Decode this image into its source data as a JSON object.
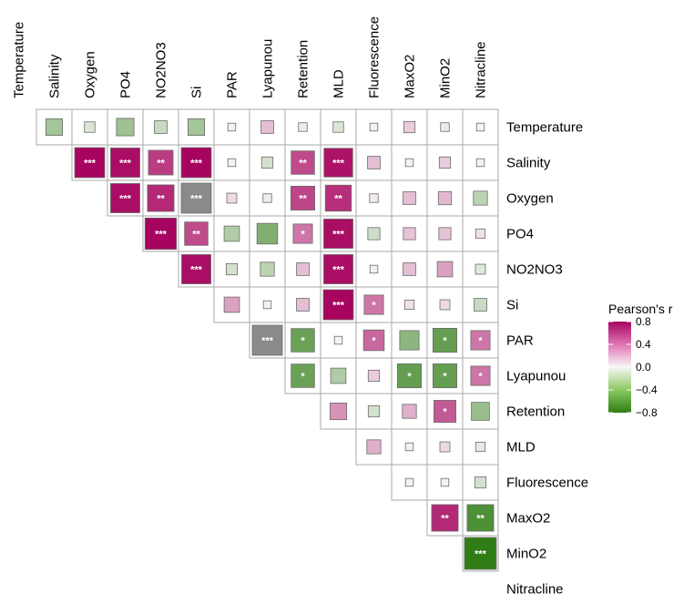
{
  "chart_data": {
    "type": "heatmap",
    "subtype": "correlation-upper-triangle",
    "variables": [
      "Temperature",
      "Salinity",
      "Oxygen",
      "PO4",
      "NO2NO3",
      "Si",
      "PAR",
      "Lyapunou",
      "Retention",
      "MLD",
      "Fluorescence",
      "MaxO2",
      "MinO2",
      "Nitracline"
    ],
    "legend": {
      "title": "Pearson's r",
      "ticks": [
        "0.8",
        "0.4",
        "0.0",
        "−0.4",
        "−0.8"
      ],
      "tick_values": [
        0.8,
        0.4,
        0.0,
        -0.4,
        -0.8
      ],
      "range": [
        -0.8,
        0.8
      ],
      "placement": "right"
    },
    "colors": {
      "positive": "#a7045f",
      "negative": "#2f7d14",
      "neutral": "#f7f7f7",
      "nonsignificant_flag": "#8a8a8a",
      "grid": "#aaaaaa",
      "star_text": "#ffffff"
    },
    "cells": [
      {
        "row": "Temperature",
        "col": "Salinity",
        "r": -0.35,
        "sig": ""
      },
      {
        "row": "Temperature",
        "col": "Oxygen",
        "r": -0.12,
        "sig": ""
      },
      {
        "row": "Temperature",
        "col": "PO4",
        "r": -0.38,
        "sig": ""
      },
      {
        "row": "Temperature",
        "col": "NO2NO3",
        "r": -0.2,
        "sig": ""
      },
      {
        "row": "Temperature",
        "col": "Si",
        "r": -0.35,
        "sig": ""
      },
      {
        "row": "Temperature",
        "col": "PAR",
        "r": 0.02,
        "sig": ""
      },
      {
        "row": "Temperature",
        "col": "Lyapunou",
        "r": 0.2,
        "sig": ""
      },
      {
        "row": "Temperature",
        "col": "Retention",
        "r": 0.05,
        "sig": ""
      },
      {
        "row": "Temperature",
        "col": "MLD",
        "r": -0.12,
        "sig": ""
      },
      {
        "row": "Temperature",
        "col": "Fluorescence",
        "r": 0.02,
        "sig": ""
      },
      {
        "row": "Temperature",
        "col": "MaxO2",
        "r": 0.15,
        "sig": ""
      },
      {
        "row": "Temperature",
        "col": "MinO2",
        "r": 0.05,
        "sig": ""
      },
      {
        "row": "Temperature",
        "col": "Nitracline",
        "r": 0.02,
        "sig": ""
      },
      {
        "row": "Salinity",
        "col": "Oxygen",
        "r": 0.85,
        "sig": "***"
      },
      {
        "row": "Salinity",
        "col": "PO4",
        "r": 0.82,
        "sig": "***"
      },
      {
        "row": "Salinity",
        "col": "NO2NO3",
        "r": 0.65,
        "sig": "**"
      },
      {
        "row": "Salinity",
        "col": "Si",
        "r": 0.85,
        "sig": "***"
      },
      {
        "row": "Salinity",
        "col": "PAR",
        "r": 0.02,
        "sig": ""
      },
      {
        "row": "Salinity",
        "col": "Lyapunou",
        "r": -0.15,
        "sig": ""
      },
      {
        "row": "Salinity",
        "col": "Retention",
        "r": 0.6,
        "sig": "**"
      },
      {
        "row": "Salinity",
        "col": "MLD",
        "r": 0.8,
        "sig": "***"
      },
      {
        "row": "Salinity",
        "col": "Fluorescence",
        "r": 0.2,
        "sig": ""
      },
      {
        "row": "Salinity",
        "col": "MaxO2",
        "r": 0.02,
        "sig": ""
      },
      {
        "row": "Salinity",
        "col": "MinO2",
        "r": 0.15,
        "sig": ""
      },
      {
        "row": "Salinity",
        "col": "Nitracline",
        "r": 0.02,
        "sig": ""
      },
      {
        "row": "Oxygen",
        "col": "PO4",
        "r": 0.82,
        "sig": "***"
      },
      {
        "row": "Oxygen",
        "col": "NO2NO3",
        "r": 0.72,
        "sig": "**"
      },
      {
        "row": "Oxygen",
        "col": "Si",
        "r": 0.85,
        "sig": "***",
        "flag": true
      },
      {
        "row": "Oxygen",
        "col": "PAR",
        "r": 0.1,
        "sig": ""
      },
      {
        "row": "Oxygen",
        "col": "Lyapunou",
        "r": -0.05,
        "sig": ""
      },
      {
        "row": "Oxygen",
        "col": "Retention",
        "r": 0.62,
        "sig": "**"
      },
      {
        "row": "Oxygen",
        "col": "MLD",
        "r": 0.7,
        "sig": "**"
      },
      {
        "row": "Oxygen",
        "col": "Fluorescence",
        "r": 0.05,
        "sig": ""
      },
      {
        "row": "Oxygen",
        "col": "MaxO2",
        "r": 0.2,
        "sig": ""
      },
      {
        "row": "Oxygen",
        "col": "MinO2",
        "r": 0.22,
        "sig": ""
      },
      {
        "row": "Oxygen",
        "col": "Nitracline",
        "r": -0.25,
        "sig": ""
      },
      {
        "row": "PO4",
        "col": "NO2NO3",
        "r": 0.9,
        "sig": "***"
      },
      {
        "row": "PO4",
        "col": "Si",
        "r": 0.6,
        "sig": "**"
      },
      {
        "row": "PO4",
        "col": "PAR",
        "r": -0.3,
        "sig": ""
      },
      {
        "row": "PO4",
        "col": "Lyapunou",
        "r": -0.5,
        "sig": ""
      },
      {
        "row": "PO4",
        "col": "Retention",
        "r": 0.45,
        "sig": "*"
      },
      {
        "row": "PO4",
        "col": "MLD",
        "r": 0.82,
        "sig": "***"
      },
      {
        "row": "PO4",
        "col": "Fluorescence",
        "r": -0.18,
        "sig": ""
      },
      {
        "row": "PO4",
        "col": "MaxO2",
        "r": 0.18,
        "sig": ""
      },
      {
        "row": "PO4",
        "col": "MinO2",
        "r": 0.18,
        "sig": ""
      },
      {
        "row": "PO4",
        "col": "Nitracline",
        "r": 0.08,
        "sig": ""
      },
      {
        "row": "NO2NO3",
        "col": "Si",
        "r": 0.82,
        "sig": "***"
      },
      {
        "row": "NO2NO3",
        "col": "PAR",
        "r": -0.15,
        "sig": ""
      },
      {
        "row": "NO2NO3",
        "col": "Lyapunou",
        "r": -0.25,
        "sig": ""
      },
      {
        "row": "NO2NO3",
        "col": "Retention",
        "r": 0.2,
        "sig": ""
      },
      {
        "row": "NO2NO3",
        "col": "MLD",
        "r": 0.82,
        "sig": "***"
      },
      {
        "row": "NO2NO3",
        "col": "Fluorescence",
        "r": 0.02,
        "sig": ""
      },
      {
        "row": "NO2NO3",
        "col": "MaxO2",
        "r": 0.2,
        "sig": ""
      },
      {
        "row": "NO2NO3",
        "col": "MinO2",
        "r": 0.3,
        "sig": ""
      },
      {
        "row": "NO2NO3",
        "col": "Nitracline",
        "r": -0.1,
        "sig": ""
      },
      {
        "row": "Si",
        "col": "PAR",
        "r": 0.3,
        "sig": ""
      },
      {
        "row": "Si",
        "col": "Lyapunou",
        "r": 0.02,
        "sig": ""
      },
      {
        "row": "Si",
        "col": "Retention",
        "r": 0.2,
        "sig": ""
      },
      {
        "row": "Si",
        "col": "MLD",
        "r": 0.85,
        "sig": "***"
      },
      {
        "row": "Si",
        "col": "Fluorescence",
        "r": 0.45,
        "sig": "*"
      },
      {
        "row": "Si",
        "col": "MaxO2",
        "r": 0.08,
        "sig": ""
      },
      {
        "row": "Si",
        "col": "MinO2",
        "r": 0.1,
        "sig": ""
      },
      {
        "row": "Si",
        "col": "Nitracline",
        "r": -0.2,
        "sig": ""
      },
      {
        "row": "PAR",
        "col": "Lyapunou",
        "r": 0.85,
        "sig": "***",
        "flag": true
      },
      {
        "row": "PAR",
        "col": "Retention",
        "r": -0.6,
        "sig": "*"
      },
      {
        "row": "PAR",
        "col": "MLD",
        "r": -0.02,
        "sig": ""
      },
      {
        "row": "PAR",
        "col": "Fluorescence",
        "r": 0.5,
        "sig": "*"
      },
      {
        "row": "PAR",
        "col": "MaxO2",
        "r": -0.45,
        "sig": ""
      },
      {
        "row": "PAR",
        "col": "MinO2",
        "r": -0.62,
        "sig": "*"
      },
      {
        "row": "PAR",
        "col": "Nitracline",
        "r": 0.45,
        "sig": "*"
      },
      {
        "row": "Lyapunou",
        "col": "Retention",
        "r": -0.6,
        "sig": "*"
      },
      {
        "row": "Lyapunou",
        "col": "MLD",
        "r": -0.3,
        "sig": ""
      },
      {
        "row": "Lyapunou",
        "col": "Fluorescence",
        "r": 0.15,
        "sig": ""
      },
      {
        "row": "Lyapunou",
        "col": "MaxO2",
        "r": -0.62,
        "sig": "*"
      },
      {
        "row": "Lyapunou",
        "col": "MinO2",
        "r": -0.62,
        "sig": "*"
      },
      {
        "row": "Lyapunou",
        "col": "Nitracline",
        "r": 0.45,
        "sig": "*"
      },
      {
        "row": "Retention",
        "col": "MLD",
        "r": 0.35,
        "sig": ""
      },
      {
        "row": "Retention",
        "col": "Fluorescence",
        "r": -0.15,
        "sig": ""
      },
      {
        "row": "Retention",
        "col": "MaxO2",
        "r": 0.25,
        "sig": ""
      },
      {
        "row": "Retention",
        "col": "MinO2",
        "r": 0.55,
        "sig": "*"
      },
      {
        "row": "Retention",
        "col": "Nitracline",
        "r": -0.4,
        "sig": ""
      },
      {
        "row": "MLD",
        "col": "Fluorescence",
        "r": 0.25,
        "sig": ""
      },
      {
        "row": "MLD",
        "col": "MaxO2",
        "r": 0.02,
        "sig": ""
      },
      {
        "row": "MLD",
        "col": "MinO2",
        "r": 0.1,
        "sig": ""
      },
      {
        "row": "MLD",
        "col": "Nitracline",
        "r": -0.08,
        "sig": ""
      },
      {
        "row": "Fluorescence",
        "col": "MaxO2",
        "r": 0.02,
        "sig": ""
      },
      {
        "row": "Fluorescence",
        "col": "MinO2",
        "r": 0.02,
        "sig": ""
      },
      {
        "row": "Fluorescence",
        "col": "Nitracline",
        "r": -0.15,
        "sig": ""
      },
      {
        "row": "MaxO2",
        "col": "MinO2",
        "r": 0.72,
        "sig": "**"
      },
      {
        "row": "MaxO2",
        "col": "Nitracline",
        "r": -0.72,
        "sig": "**"
      },
      {
        "row": "MinO2",
        "col": "Nitracline",
        "r": -0.92,
        "sig": "***"
      }
    ]
  }
}
